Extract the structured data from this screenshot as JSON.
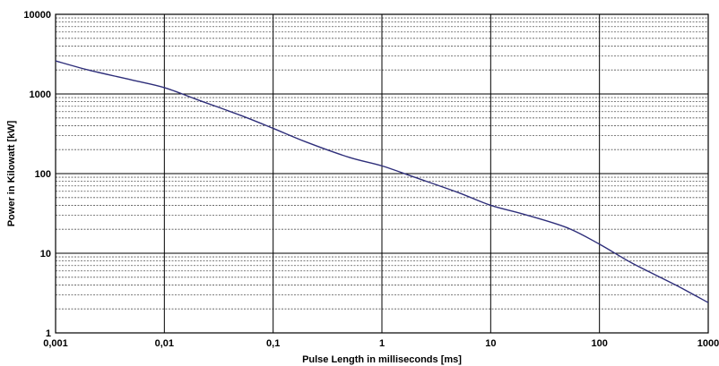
{
  "chart_data": {
    "type": "line",
    "xlabel": "Pulse Length in milliseconds [ms]",
    "ylabel": "Power in Kilowatt [kW]",
    "x_scale": "log",
    "y_scale": "log",
    "xlim": [
      0.001,
      1000
    ],
    "ylim": [
      1,
      10000
    ],
    "x_ticks": [
      "0,001",
      "0,01",
      "0,1",
      "1",
      "10",
      "100",
      "1000"
    ],
    "y_ticks": [
      "1",
      "10",
      "100",
      "1000",
      "10000"
    ],
    "grid": true,
    "series": [
      {
        "color": "#2e2e7a",
        "x": [
          0.001,
          0.002,
          0.005,
          0.01,
          0.02,
          0.05,
          0.1,
          0.2,
          0.5,
          1,
          2,
          5,
          10,
          20,
          50,
          100,
          200,
          500,
          1000
        ],
        "y": [
          2600,
          2000,
          1500,
          1200,
          850,
          540,
          370,
          250,
          160,
          125,
          90,
          58,
          40,
          31,
          21,
          13,
          7.5,
          4,
          2.4
        ]
      }
    ]
  }
}
